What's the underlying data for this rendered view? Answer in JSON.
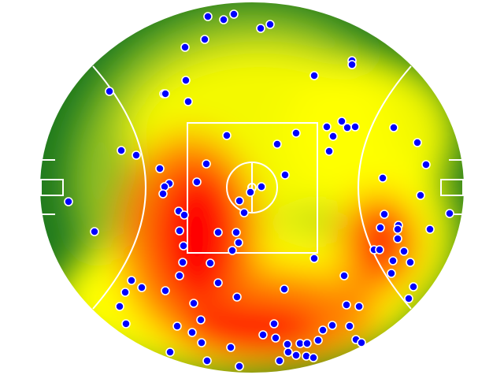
{
  "chart_data": {
    "type": "heatmap",
    "title": "",
    "xlabel": "",
    "ylabel": "",
    "field_shape": "oval",
    "grid": false,
    "legend": "none",
    "colors": {
      "low": "#1f7a1f",
      "mid_low": "#8fbf20",
      "mid": "#ffff00",
      "high": "#ff7a00",
      "peak": "#ff0000",
      "point_fill": "#0000ff",
      "point_stroke": "#ffffff",
      "line": "#ffffff"
    },
    "points": [
      [
        264,
        21
      ],
      [
        284,
        25
      ],
      [
        297,
        18
      ],
      [
        331,
        36
      ],
      [
        343,
        31
      ],
      [
        260,
        50
      ],
      [
        235,
        60
      ],
      [
        236,
        102
      ],
      [
        208,
        119
      ],
      [
        210,
        119
      ],
      [
        239,
        129
      ],
      [
        139,
        116
      ],
      [
        399,
        96
      ],
      [
        447,
        77
      ],
      [
        447,
        82
      ],
      [
        288,
        172
      ],
      [
        376,
        169
      ],
      [
        352,
        183
      ],
      [
        415,
        161
      ],
      [
        434,
        154
      ],
      [
        441,
        162
      ],
      [
        451,
        161
      ],
      [
        423,
        173
      ],
      [
        418,
        192
      ],
      [
        500,
        162
      ],
      [
        530,
        181
      ],
      [
        541,
        209
      ],
      [
        486,
        226
      ],
      [
        534,
        248
      ],
      [
        571,
        271
      ],
      [
        546,
        291
      ],
      [
        488,
        272
      ],
      [
        506,
        286
      ],
      [
        505,
        291
      ],
      [
        483,
        289
      ],
      [
        505,
        303
      ],
      [
        513,
        319
      ],
      [
        475,
        317
      ],
      [
        482,
        317
      ],
      [
        499,
        331
      ],
      [
        521,
        333
      ],
      [
        497,
        347
      ],
      [
        525,
        364
      ],
      [
        519,
        379
      ],
      [
        154,
        191
      ],
      [
        173,
        197
      ],
      [
        203,
        214
      ],
      [
        215,
        233
      ],
      [
        209,
        237
      ],
      [
        207,
        246
      ],
      [
        87,
        256
      ],
      [
        120,
        294
      ],
      [
        262,
        208
      ],
      [
        250,
        231
      ],
      [
        304,
        255
      ],
      [
        318,
        244
      ],
      [
        332,
        237
      ],
      [
        310,
        270
      ],
      [
        362,
        222
      ],
      [
        227,
        268
      ],
      [
        234,
        273
      ],
      [
        228,
        293
      ],
      [
        233,
        312
      ],
      [
        277,
        295
      ],
      [
        300,
        295
      ],
      [
        303,
        308
      ],
      [
        295,
        318
      ],
      [
        232,
        333
      ],
      [
        267,
        334
      ],
      [
        228,
        350
      ],
      [
        277,
        359
      ],
      [
        399,
        328
      ],
      [
        437,
        350
      ],
      [
        167,
        356
      ],
      [
        180,
        365
      ],
      [
        210,
        369
      ],
      [
        159,
        371
      ],
      [
        152,
        389
      ],
      [
        246,
        385
      ],
      [
        301,
        377
      ],
      [
        361,
        367
      ],
      [
        440,
        387
      ],
      [
        456,
        389
      ],
      [
        160,
        411
      ],
      [
        225,
        414
      ],
      [
        255,
        406
      ],
      [
        244,
        422
      ],
      [
        348,
        411
      ],
      [
        422,
        413
      ],
      [
        410,
        419
      ],
      [
        444,
        414
      ],
      [
        334,
        425
      ],
      [
        350,
        429
      ],
      [
        365,
        437
      ],
      [
        381,
        436
      ],
      [
        390,
        436
      ],
      [
        404,
        432
      ],
      [
        256,
        435
      ],
      [
        293,
        441
      ],
      [
        216,
        447
      ],
      [
        366,
        447
      ],
      [
        376,
        451
      ],
      [
        389,
        452
      ],
      [
        398,
        454
      ],
      [
        355,
        458
      ],
      [
        452,
        431
      ],
      [
        459,
        435
      ],
      [
        263,
        458
      ],
      [
        304,
        465
      ]
    ]
  }
}
